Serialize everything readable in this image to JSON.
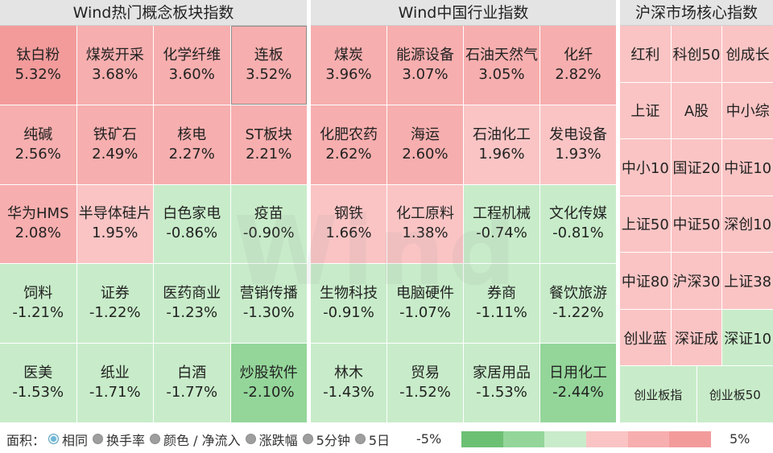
{
  "panels": {
    "concept": {
      "title": "Wind热门概念板块指数"
    },
    "industry": {
      "title": "Wind中国行业指数"
    },
    "core": {
      "title": "沪深市场核心指数"
    }
  },
  "concept_tiles": [
    {
      "name": "钛白粉",
      "pct": "5.32%",
      "color": "#f39b9b"
    },
    {
      "name": "煤炭开采",
      "pct": "3.68%",
      "color": "#f7aeae"
    },
    {
      "name": "化学纤维",
      "pct": "3.60%",
      "color": "#f7aeae"
    },
    {
      "name": "连板",
      "pct": "3.52%",
      "color": "#f7aeae"
    },
    {
      "name": "纯碱",
      "pct": "2.56%",
      "color": "#f7aeae"
    },
    {
      "name": "铁矿石",
      "pct": "2.49%",
      "color": "#f7aeae"
    },
    {
      "name": "核电",
      "pct": "2.27%",
      "color": "#f7aeae"
    },
    {
      "name": "ST板块",
      "pct": "2.21%",
      "color": "#f7aeae"
    },
    {
      "name": "华为HMS",
      "pct": "2.08%",
      "color": "#f7aeae"
    },
    {
      "name": "半导体硅片",
      "pct": "1.95%",
      "color": "#fac4c4"
    },
    {
      "name": "白色家电",
      "pct": "-0.86%",
      "color": "#c8ecc9"
    },
    {
      "name": "疫苗",
      "pct": "-0.90%",
      "color": "#c8ecc9"
    },
    {
      "name": "饲料",
      "pct": "-1.21%",
      "color": "#c8ecc9"
    },
    {
      "name": "证券",
      "pct": "-1.22%",
      "color": "#c8ecc9"
    },
    {
      "name": "医药商业",
      "pct": "-1.23%",
      "color": "#c8ecc9"
    },
    {
      "name": "营销传播",
      "pct": "-1.30%",
      "color": "#c8ecc9"
    },
    {
      "name": "医美",
      "pct": "-1.53%",
      "color": "#c8ecc9"
    },
    {
      "name": "纸业",
      "pct": "-1.71%",
      "color": "#c8ecc9"
    },
    {
      "name": "白酒",
      "pct": "-1.77%",
      "color": "#c8ecc9"
    },
    {
      "name": "炒股软件",
      "pct": "-2.10%",
      "color": "#94d69a"
    }
  ],
  "industry_tiles": [
    {
      "name": "煤炭",
      "pct": "3.96%",
      "color": "#f7aeae"
    },
    {
      "name": "能源设备",
      "pct": "3.07%",
      "color": "#f7aeae"
    },
    {
      "name": "石油天然气",
      "pct": "3.05%",
      "color": "#f7aeae"
    },
    {
      "name": "化纤",
      "pct": "2.82%",
      "color": "#f7aeae"
    },
    {
      "name": "化肥农药",
      "pct": "2.62%",
      "color": "#f7aeae"
    },
    {
      "name": "海运",
      "pct": "2.60%",
      "color": "#f7aeae"
    },
    {
      "name": "石油化工",
      "pct": "1.96%",
      "color": "#fac4c4"
    },
    {
      "name": "发电设备",
      "pct": "1.93%",
      "color": "#fac4c4"
    },
    {
      "name": "钢铁",
      "pct": "1.66%",
      "color": "#fac4c4"
    },
    {
      "name": "化工原料",
      "pct": "1.38%",
      "color": "#fac4c4"
    },
    {
      "name": "工程机械",
      "pct": "-0.74%",
      "color": "#c8ecc9"
    },
    {
      "name": "文化传媒",
      "pct": "-0.81%",
      "color": "#c8ecc9"
    },
    {
      "name": "生物科技",
      "pct": "-0.91%",
      "color": "#c8ecc9"
    },
    {
      "name": "电脑硬件",
      "pct": "-1.07%",
      "color": "#c8ecc9"
    },
    {
      "name": "券商",
      "pct": "-1.11%",
      "color": "#c8ecc9"
    },
    {
      "name": "餐饮旅游",
      "pct": "-1.22%",
      "color": "#c8ecc9"
    },
    {
      "name": "林木",
      "pct": "-1.43%",
      "color": "#c8ecc9"
    },
    {
      "name": "贸易",
      "pct": "-1.52%",
      "color": "#c8ecc9"
    },
    {
      "name": "家居用品",
      "pct": "-1.53%",
      "color": "#c8ecc9"
    },
    {
      "name": "日用化工",
      "pct": "-2.44%",
      "color": "#94d69a"
    }
  ],
  "core_indices": [
    {
      "name": "红利",
      "color": "#fac4c4"
    },
    {
      "name": "科创50",
      "color": "#fac4c4"
    },
    {
      "name": "创成长",
      "color": "#fac4c4"
    },
    {
      "name": "上证",
      "color": "#fac4c4"
    },
    {
      "name": "A股",
      "color": "#fac4c4"
    },
    {
      "name": "中小综",
      "color": "#fac4c4"
    },
    {
      "name": "中小10",
      "color": "#fac4c4"
    },
    {
      "name": "国证20",
      "color": "#fac4c4"
    },
    {
      "name": "中证10",
      "color": "#fac4c4"
    },
    {
      "name": "上证50",
      "color": "#fac4c4"
    },
    {
      "name": "中证50",
      "color": "#fac4c4"
    },
    {
      "name": "深创10",
      "color": "#fac4c4"
    },
    {
      "name": "中证80",
      "color": "#fac4c4"
    },
    {
      "name": "沪深30",
      "color": "#fac4c4"
    },
    {
      "name": "上证38",
      "color": "#fac4c4"
    },
    {
      "name": "创业蓝",
      "color": "#fac4c4"
    },
    {
      "name": "深证成",
      "color": "#fac4c4"
    },
    {
      "name": "深证10",
      "color": "#c8ecc9"
    },
    {
      "name": "创业板指",
      "color": "#c8ecc9"
    },
    {
      "name": "创业板50",
      "color": "#c8ecc9"
    }
  ],
  "watermark": "Wind",
  "footer": {
    "area_label": "面积：",
    "options": [
      {
        "label": "相同",
        "selected": true
      },
      {
        "label": "换手率",
        "selected": false
      },
      {
        "label": "颜色 / 净流入",
        "selected": false
      },
      {
        "label": "涨跌幅",
        "selected": false
      },
      {
        "label": "5分钟",
        "selected": false
      },
      {
        "label": "5日",
        "selected": false
      }
    ],
    "legend_min": "-5%",
    "legend_max": "5%",
    "legend_colors": [
      "#6cc074",
      "#94d69a",
      "#c8ecc9",
      "#fac4c4",
      "#f7aeae",
      "#f39b9b"
    ]
  }
}
